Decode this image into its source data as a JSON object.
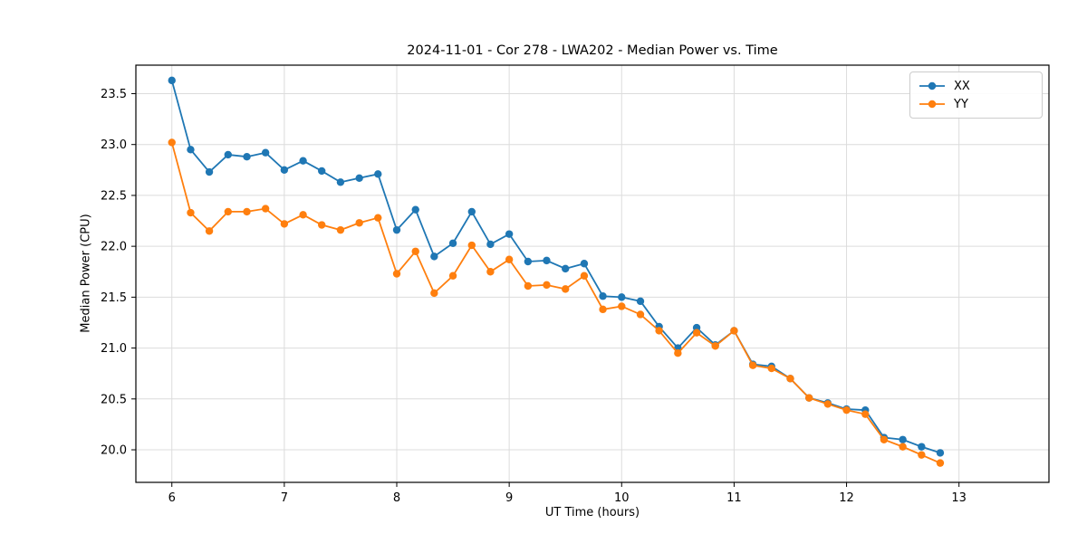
{
  "figure": {
    "background": "#ffffff",
    "spine_color": "#000000",
    "grid_color": "#dcdcdc"
  },
  "chart_data": {
    "type": "line",
    "title": "2024-11-01 - Cor 278 - LWA202 - Median Power vs. Time",
    "xlabel": "UT Time (hours)",
    "ylabel": "Median Power (CPU)",
    "xlim": [
      5.68,
      13.8
    ],
    "ylim": [
      19.68,
      23.78
    ],
    "xticks": [
      6,
      7,
      8,
      9,
      10,
      11,
      12,
      13
    ],
    "yticks": [
      20.0,
      20.5,
      21.0,
      21.5,
      22.0,
      22.5,
      23.0,
      23.5
    ],
    "grid": true,
    "legend": {
      "position": "upper right",
      "entries": [
        "XX",
        "YY"
      ]
    },
    "x": [
      6.0,
      6.167,
      6.333,
      6.5,
      6.667,
      6.833,
      7.0,
      7.167,
      7.333,
      7.5,
      7.667,
      7.833,
      8.0,
      8.167,
      8.333,
      8.5,
      8.667,
      8.833,
      9.0,
      9.167,
      9.333,
      9.5,
      9.667,
      9.833,
      10.0,
      10.167,
      10.333,
      10.5,
      10.667,
      10.833,
      11.0,
      11.167,
      11.333,
      11.5,
      11.667,
      11.833,
      12.0,
      12.167,
      12.333,
      12.5,
      12.667,
      12.833
    ],
    "series": [
      {
        "name": "XX",
        "color": "#1f77b4",
        "values": [
          23.63,
          22.95,
          22.73,
          22.9,
          22.88,
          22.92,
          22.75,
          22.84,
          22.74,
          22.63,
          22.67,
          22.71,
          22.16,
          22.36,
          21.9,
          22.03,
          22.34,
          22.02,
          22.12,
          21.85,
          21.86,
          21.78,
          21.83,
          21.51,
          21.5,
          21.46,
          21.21,
          21.0,
          21.2,
          21.03,
          21.17,
          20.84,
          20.82,
          20.7,
          20.51,
          20.46,
          20.4,
          20.39,
          20.12,
          20.1,
          20.03,
          19.97
        ]
      },
      {
        "name": "YY",
        "color": "#ff7f0e",
        "values": [
          23.02,
          22.33,
          22.15,
          22.34,
          22.34,
          22.37,
          22.22,
          22.31,
          22.21,
          22.16,
          22.23,
          22.28,
          21.73,
          21.95,
          21.54,
          21.71,
          22.01,
          21.75,
          21.87,
          21.61,
          21.62,
          21.58,
          21.71,
          21.38,
          21.41,
          21.33,
          21.17,
          20.95,
          21.15,
          21.02,
          21.17,
          20.83,
          20.8,
          20.7,
          20.51,
          20.45,
          20.39,
          20.35,
          20.1,
          20.03,
          19.95,
          19.87
        ]
      }
    ]
  }
}
